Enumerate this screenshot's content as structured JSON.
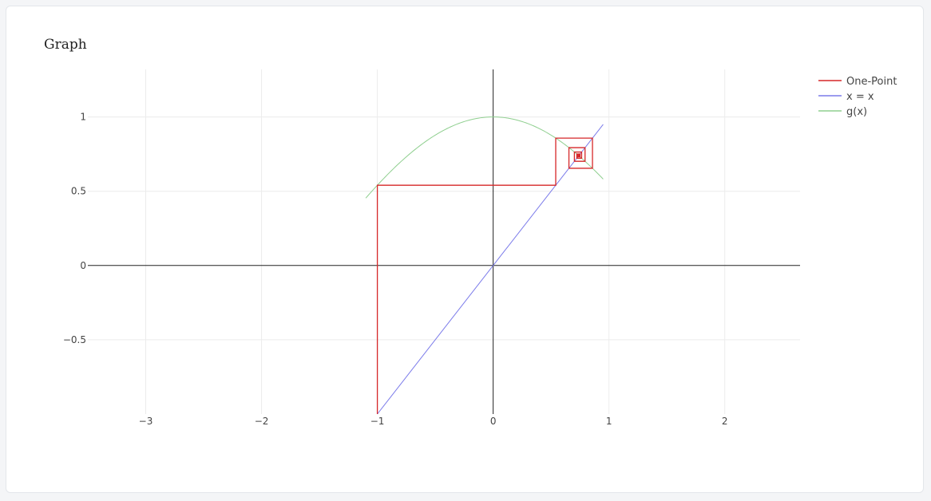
{
  "card": {
    "title": "Graph"
  },
  "chart_data": {
    "type": "line",
    "title": "",
    "xlabel": "",
    "ylabel": "",
    "xlim": [
      -3.5,
      2.65
    ],
    "ylim": [
      -1.0,
      1.32
    ],
    "x_ticks": [
      -3,
      -2,
      -1,
      0,
      1,
      2
    ],
    "x_tick_labels": [
      "−3",
      "−2",
      "−1",
      "0",
      "1",
      "2"
    ],
    "y_ticks": [
      -0.5,
      0,
      0.5,
      1
    ],
    "y_tick_labels": [
      "−0.5",
      "0",
      "0.5",
      "1"
    ],
    "grid": true,
    "legend_position": "top-right outside",
    "series": [
      {
        "name": "One-Point",
        "color": "#d62728",
        "style": "cobweb",
        "start_x": -1,
        "iterations": 40,
        "function": "cos(x)"
      },
      {
        "name": "x = x",
        "color": "#7b7bea",
        "x": [
          -1,
          0.95
        ],
        "y": [
          -1,
          0.95
        ]
      },
      {
        "name": "g(x)",
        "color": "#8fcf8f",
        "function": "cos(x)",
        "x_range": [
          -1.1,
          0.95
        ]
      }
    ]
  }
}
